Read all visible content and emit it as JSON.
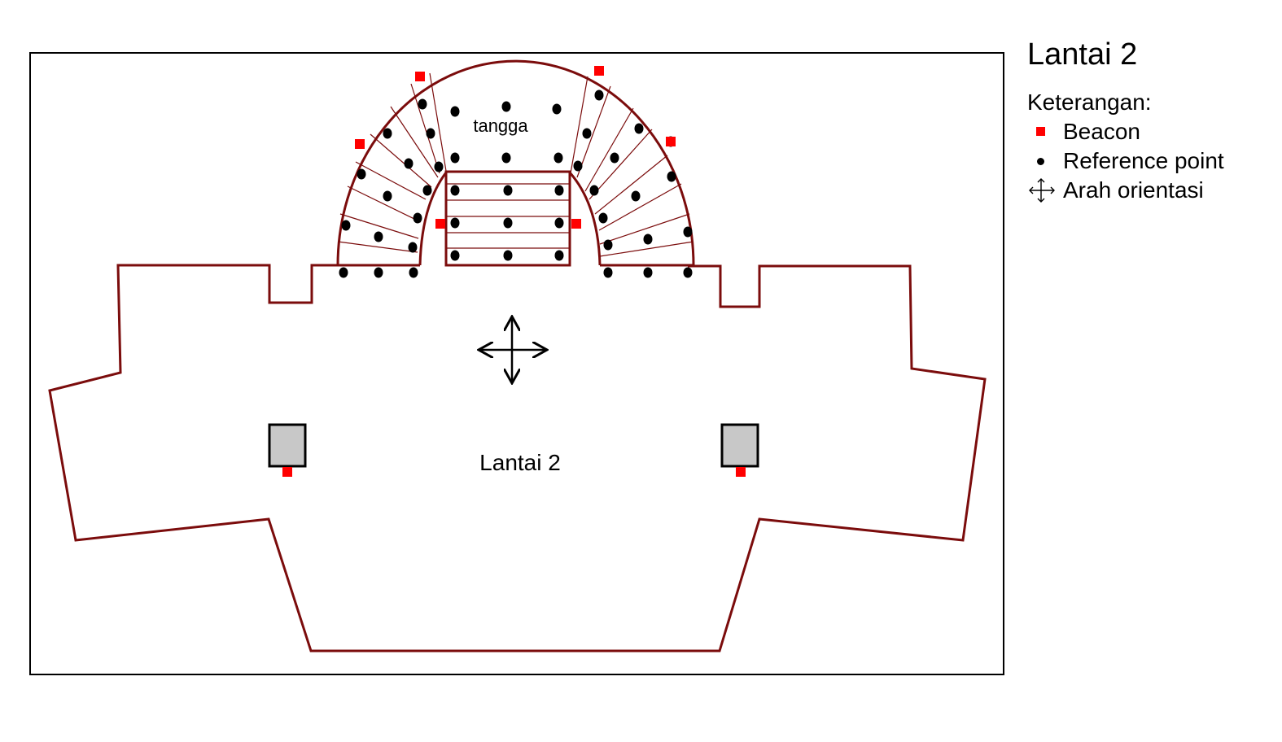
{
  "diagram": {
    "floor_label": "Lantai 2",
    "stair_label": "tangga"
  },
  "legend": {
    "title": "Lantai 2",
    "heading": "Keterangan:",
    "items": [
      {
        "icon": "beacon-icon",
        "label": "Beacon"
      },
      {
        "icon": "reference-point-icon",
        "label": "Reference point"
      },
      {
        "icon": "orientation-arrows-icon",
        "label": "Arah orientasi"
      }
    ]
  },
  "colors": {
    "wall": "#7b0c0c",
    "beacon": "#ff0000",
    "reference_point": "#000000",
    "pillar": "#c8c8c8",
    "frame": "#000000"
  }
}
